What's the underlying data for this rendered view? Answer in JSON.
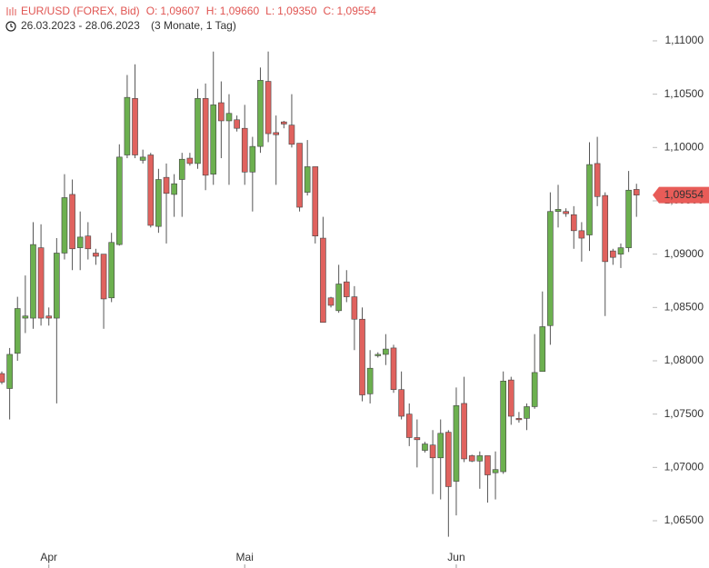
{
  "chart_data": {
    "type": "candlestick",
    "title": "EUR/USD (FOREX, Bid)",
    "ohlc_labels": [
      {
        "label": "O:",
        "value": "1,09607"
      },
      {
        "label": "H:",
        "value": "1,09660"
      },
      {
        "label": "L:",
        "value": "1,09350"
      },
      {
        "label": "C:",
        "value": "1,09554"
      }
    ],
    "date_range": "26.03.2023 - 28.06.2023",
    "period": "(3 Monate, 1 Tag)",
    "last_price": {
      "value": 1.09554,
      "label": "1,09554"
    },
    "up_color": "#6cb04f",
    "down_color": "#e0625e",
    "categories": [
      null,
      null,
      null,
      null,
      null,
      null,
      "Apr",
      null,
      null,
      null,
      null,
      null,
      null,
      null,
      null,
      null,
      null,
      null,
      null,
      null,
      null,
      null,
      null,
      null,
      null,
      null,
      null,
      null,
      null,
      null,
      null,
      "Mai",
      null,
      null,
      null,
      null,
      null,
      null,
      null,
      null,
      null,
      null,
      null,
      null,
      null,
      null,
      null,
      null,
      null,
      null,
      null,
      null,
      null,
      null,
      null,
      null,
      null,
      null,
      "Jun",
      null,
      null,
      null,
      null,
      null,
      null,
      null,
      null,
      null,
      null,
      null,
      null,
      null,
      null,
      null,
      null,
      null,
      null,
      null,
      null,
      null,
      null,
      null
    ],
    "open": [
      1.0788,
      1.0774,
      1.0807,
      1.084,
      1.084,
      1.0906,
      1.0842,
      1.084,
      1.0901,
      1.0956,
      1.0906,
      1.0917,
      1.0901,
      1.09,
      1.0859,
      1.0909,
      1.0993,
      1.1046,
      1.0988,
      1.0993,
      1.0926,
      1.0972,
      1.0956,
      1.097,
      1.099,
      1.0985,
      1.1046,
      1.0975,
      1.1042,
      1.1025,
      1.1026,
      1.1018,
      1.0977,
      1.1001,
      1.1062,
      1.1014,
      1.1024,
      1.1021,
      1.1004,
      1.0958,
      1.0982,
      1.0915,
      1.0859,
      1.0847,
      1.0874,
      1.086,
      1.0839,
      1.0769,
      1.0805,
      1.0806,
      1.0812,
      1.0773,
      1.075,
      1.0728,
      1.0716,
      1.0721,
      1.0709,
      1.0733,
      1.0687,
      1.076,
      1.0711,
      1.0706,
      1.0711,
      1.0695,
      1.0696,
      1.0782,
      1.0746,
      1.0746,
      1.0757,
      1.079,
      1.0833,
      1.094,
      1.094,
      1.0937,
      1.0922,
      1.0918,
      1.0985,
      1.0955,
      1.0903,
      1.09,
      1.0906,
      1.09607
    ],
    "high": [
      1.079,
      1.0812,
      1.086,
      1.088,
      1.093,
      1.0928,
      1.085,
      1.0915,
      1.0975,
      1.097,
      1.094,
      1.093,
      1.0905,
      1.09,
      1.092,
      1.1003,
      1.1068,
      1.1078,
      1.0998,
      1.0995,
      1.098,
      1.0985,
      1.0975,
      1.0995,
      1.0995,
      1.1055,
      1.106,
      1.109,
      1.1062,
      1.105,
      1.103,
      1.104,
      1.101,
      1.1075,
      1.109,
      1.103,
      1.1025,
      1.105,
      1.1004,
      1.1007,
      1.0982,
      1.0935,
      1.086,
      1.089,
      1.0885,
      1.087,
      1.085,
      1.081,
      1.0808,
      1.0825,
      1.0815,
      1.079,
      1.076,
      1.0745,
      1.0724,
      1.0735,
      1.0745,
      1.0735,
      1.0775,
      1.0785,
      1.0712,
      1.0715,
      1.0711,
      1.0715,
      1.079,
      1.0785,
      1.0752,
      1.076,
      1.0825,
      1.0865,
      1.0958,
      1.0965,
      1.0943,
      1.0945,
      1.093,
      1.1005,
      1.101,
      1.0958,
      1.0905,
      1.091,
      1.0978,
      1.0966
    ],
    "low": [
      1.0778,
      1.0745,
      1.08,
      1.0826,
      1.083,
      1.0833,
      1.0833,
      1.076,
      1.0895,
      1.0885,
      1.0885,
      1.0895,
      1.089,
      1.083,
      1.0855,
      1.0908,
      1.099,
      1.099,
      1.0985,
      1.0925,
      1.092,
      1.091,
      1.0935,
      1.0935,
      1.0983,
      1.098,
      1.096,
      1.0965,
      1.099,
      1.0965,
      1.1015,
      1.0965,
      1.094,
      1.0995,
      1.1005,
      1.0965,
      1.1018,
      1.1,
      1.094,
      1.0955,
      1.091,
      1.0836,
      1.085,
      1.0845,
      1.0855,
      1.081,
      1.0762,
      1.076,
      1.0803,
      1.0796,
      1.077,
      1.0745,
      1.072,
      1.07,
      1.0714,
      1.0675,
      1.067,
      1.0635,
      1.0655,
      1.0705,
      1.0705,
      1.068,
      1.0667,
      1.067,
      1.0694,
      1.074,
      1.0742,
      1.0735,
      1.0755,
      1.079,
      1.0815,
      1.0925,
      1.0935,
      1.0905,
      1.0893,
      1.0903,
      1.0945,
      1.0842,
      1.089,
      1.0887,
      1.0902,
      1.0935
    ],
    "close": [
      1.078,
      1.0806,
      1.0849,
      1.0842,
      1.0909,
      1.084,
      1.084,
      1.0901,
      1.0953,
      1.0905,
      1.0916,
      1.0905,
      1.0898,
      1.0858,
      1.0911,
      1.0991,
      1.1047,
      1.0993,
      1.0991,
      1.0927,
      1.097,
      1.0957,
      1.0966,
      1.0989,
      1.0985,
      1.1046,
      1.0974,
      1.104,
      1.1025,
      1.1032,
      1.1018,
      1.0977,
      1.1001,
      1.1063,
      1.1013,
      1.1012,
      1.1022,
      1.1003,
      1.0944,
      1.0982,
      1.0917,
      1.0836,
      1.0852,
      1.0872,
      1.086,
      1.0839,
      1.0768,
      1.0793,
      1.0806,
      1.0811,
      1.0773,
      1.0748,
      1.0728,
      1.0726,
      1.0722,
      1.0709,
      1.0732,
      1.0682,
      1.0758,
      1.0708,
      1.0706,
      1.0711,
      1.0693,
      1.0698,
      1.0781,
      1.0748,
      1.0745,
      1.0757,
      1.0789,
      1.0832,
      1.094,
      1.0942,
      1.0938,
      1.0922,
      1.0915,
      1.0984,
      1.0954,
      1.0893,
      1.0897,
      1.0906,
      1.096,
      1.09554
    ],
    "ylim": [
      1.0627,
      1.1109
    ],
    "yticks": [
      {
        "value": 1.065,
        "label": "1,06500"
      },
      {
        "value": 1.07,
        "label": "1,07000"
      },
      {
        "value": 1.075,
        "label": "1,07500"
      },
      {
        "value": 1.08,
        "label": "1,08000"
      },
      {
        "value": 1.085,
        "label": "1,08500"
      },
      {
        "value": 1.09,
        "label": "1,09000"
      },
      {
        "value": 1.095,
        "label": "1,09500"
      },
      {
        "value": 1.1,
        "label": "1,10000"
      },
      {
        "value": 1.105,
        "label": "1,10500"
      },
      {
        "value": 1.11,
        "label": "1,11000"
      }
    ]
  }
}
